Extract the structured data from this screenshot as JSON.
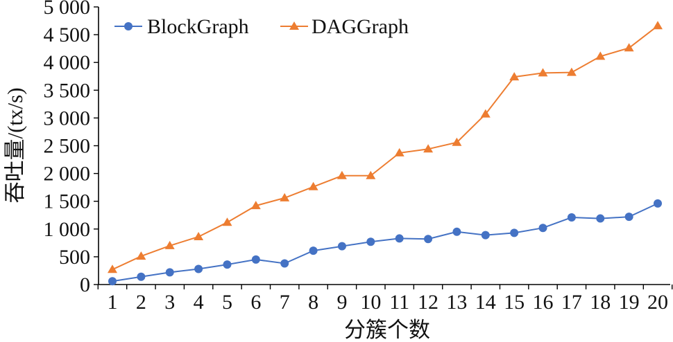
{
  "chart_data": {
    "type": "line",
    "xlabel": "分簇个数",
    "ylabel": "吞吐量/(tx/s)",
    "x": [
      1,
      2,
      3,
      4,
      5,
      6,
      7,
      8,
      9,
      10,
      11,
      12,
      13,
      14,
      15,
      16,
      17,
      18,
      19,
      20
    ],
    "ylim": [
      0,
      5000
    ],
    "yticks": [
      0,
      500,
      1000,
      1500,
      2000,
      2500,
      3000,
      3500,
      4000,
      4500,
      5000
    ],
    "ytick_labels": [
      "0",
      "500",
      "1 000",
      "1 500",
      "2 000",
      "2 500",
      "3 000",
      "3 500",
      "4 000",
      "4 500",
      "5 000"
    ],
    "grid": false,
    "legend_position": "top-left",
    "series": [
      {
        "name": "BlockGraph",
        "color": "#4472c4",
        "marker": "circle",
        "values": [
          60,
          140,
          220,
          280,
          360,
          450,
          380,
          610,
          690,
          770,
          830,
          820,
          950,
          890,
          930,
          1020,
          1210,
          1190,
          1220,
          1460
        ]
      },
      {
        "name": "DAGGraph",
        "color": "#ed7d31",
        "marker": "triangle",
        "values": [
          270,
          510,
          700,
          860,
          1120,
          1420,
          1560,
          1760,
          1960,
          1960,
          2370,
          2440,
          2560,
          3070,
          3740,
          3810,
          3820,
          4110,
          4260,
          4660
        ]
      }
    ]
  }
}
